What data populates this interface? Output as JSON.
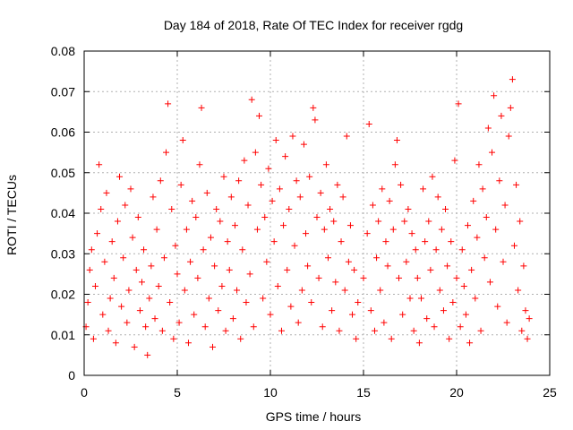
{
  "chart_data": {
    "type": "scatter",
    "title": "Day 184 of 2018, Rate Of TEC Index for receiver rgdg",
    "xlabel": "GPS time / hours",
    "ylabel": "ROTI / TECUs",
    "xlim": [
      0,
      25
    ],
    "ylim": [
      0,
      0.08
    ],
    "x_ticks": [
      0,
      5,
      10,
      15,
      20,
      25
    ],
    "y_ticks": [
      0,
      0.01,
      0.02,
      0.03,
      0.04,
      0.05,
      0.06,
      0.07,
      0.08
    ],
    "x_tick_labels": [
      "0",
      "5",
      "10",
      "15",
      "20",
      "25"
    ],
    "y_tick_labels": [
      "0",
      "0.01",
      "0.02",
      "0.03",
      "0.04",
      "0.05",
      "0.06",
      "0.07",
      "0.08"
    ],
    "grid": true,
    "marker": "+",
    "color": "#ff0000",
    "series": [
      {
        "points": [
          [
            0.1,
            0.012
          ],
          [
            0.2,
            0.018
          ],
          [
            0.3,
            0.026
          ],
          [
            0.4,
            0.031
          ],
          [
            0.5,
            0.009
          ],
          [
            0.6,
            0.022
          ],
          [
            0.7,
            0.035
          ],
          [
            0.8,
            0.052
          ],
          [
            0.9,
            0.041
          ],
          [
            1.0,
            0.015
          ],
          [
            1.1,
            0.028
          ],
          [
            1.2,
            0.045
          ],
          [
            1.3,
            0.011
          ],
          [
            1.4,
            0.019
          ],
          [
            1.5,
            0.033
          ],
          [
            1.6,
            0.024
          ],
          [
            1.7,
            0.008
          ],
          [
            1.8,
            0.038
          ],
          [
            1.9,
            0.049
          ],
          [
            2.0,
            0.017
          ],
          [
            2.1,
            0.029
          ],
          [
            2.2,
            0.042
          ],
          [
            2.3,
            0.013
          ],
          [
            2.4,
            0.021
          ],
          [
            2.5,
            0.046
          ],
          [
            2.6,
            0.034
          ],
          [
            2.7,
            0.007
          ],
          [
            2.8,
            0.026
          ],
          [
            2.9,
            0.039
          ],
          [
            3.0,
            0.016
          ],
          [
            3.1,
            0.023
          ],
          [
            3.2,
            0.031
          ],
          [
            3.3,
            0.012
          ],
          [
            3.4,
            0.005
          ],
          [
            3.5,
            0.019
          ],
          [
            3.6,
            0.027
          ],
          [
            3.7,
            0.044
          ],
          [
            3.8,
            0.014
          ],
          [
            3.9,
            0.036
          ],
          [
            4.0,
            0.022
          ],
          [
            4.1,
            0.048
          ],
          [
            4.2,
            0.011
          ],
          [
            4.3,
            0.029
          ],
          [
            4.4,
            0.055
          ],
          [
            4.5,
            0.067
          ],
          [
            4.6,
            0.018
          ],
          [
            4.7,
            0.041
          ],
          [
            4.8,
            0.009
          ],
          [
            4.9,
            0.032
          ],
          [
            5.0,
            0.025
          ],
          [
            5.1,
            0.013
          ],
          [
            5.2,
            0.047
          ],
          [
            5.3,
            0.058
          ],
          [
            5.4,
            0.021
          ],
          [
            5.5,
            0.036
          ],
          [
            5.6,
            0.008
          ],
          [
            5.7,
            0.028
          ],
          [
            5.8,
            0.043
          ],
          [
            5.9,
            0.015
          ],
          [
            6.0,
            0.039
          ],
          [
            6.1,
            0.024
          ],
          [
            6.2,
            0.052
          ],
          [
            6.3,
            0.066
          ],
          [
            6.4,
            0.031
          ],
          [
            6.5,
            0.012
          ],
          [
            6.6,
            0.045
          ],
          [
            6.7,
            0.019
          ],
          [
            6.8,
            0.034
          ],
          [
            6.9,
            0.007
          ],
          [
            7.0,
            0.027
          ],
          [
            7.1,
            0.041
          ],
          [
            7.2,
            0.016
          ],
          [
            7.3,
            0.038
          ],
          [
            7.4,
            0.022
          ],
          [
            7.5,
            0.049
          ],
          [
            7.6,
            0.011
          ],
          [
            7.7,
            0.033
          ],
          [
            7.8,
            0.026
          ],
          [
            7.9,
            0.044
          ],
          [
            8.0,
            0.014
          ],
          [
            8.1,
            0.037
          ],
          [
            8.2,
            0.021
          ],
          [
            8.3,
            0.048
          ],
          [
            8.4,
            0.009
          ],
          [
            8.5,
            0.031
          ],
          [
            8.6,
            0.053
          ],
          [
            8.7,
            0.018
          ],
          [
            8.8,
            0.042
          ],
          [
            8.9,
            0.025
          ],
          [
            9.0,
            0.068
          ],
          [
            9.1,
            0.012
          ],
          [
            9.2,
            0.055
          ],
          [
            9.3,
            0.036
          ],
          [
            9.4,
            0.064
          ],
          [
            9.5,
            0.047
          ],
          [
            9.6,
            0.019
          ],
          [
            9.7,
            0.039
          ],
          [
            9.8,
            0.028
          ],
          [
            9.9,
            0.051
          ],
          [
            10.0,
            0.015
          ],
          [
            10.1,
            0.043
          ],
          [
            10.2,
            0.033
          ],
          [
            10.3,
            0.058
          ],
          [
            10.4,
            0.022
          ],
          [
            10.5,
            0.046
          ],
          [
            10.6,
            0.011
          ],
          [
            10.7,
            0.037
          ],
          [
            10.8,
            0.054
          ],
          [
            10.9,
            0.026
          ],
          [
            11.0,
            0.041
          ],
          [
            11.1,
            0.017
          ],
          [
            11.2,
            0.059
          ],
          [
            11.3,
            0.032
          ],
          [
            11.4,
            0.048
          ],
          [
            11.5,
            0.013
          ],
          [
            11.6,
            0.044
          ],
          [
            11.7,
            0.021
          ],
          [
            11.8,
            0.057
          ],
          [
            11.9,
            0.035
          ],
          [
            12.0,
            0.027
          ],
          [
            12.1,
            0.049
          ],
          [
            12.2,
            0.018
          ],
          [
            12.3,
            0.066
          ],
          [
            12.4,
            0.063
          ],
          [
            12.5,
            0.039
          ],
          [
            12.6,
            0.024
          ],
          [
            12.7,
            0.045
          ],
          [
            12.8,
            0.012
          ],
          [
            12.9,
            0.036
          ],
          [
            13.0,
            0.052
          ],
          [
            13.1,
            0.029
          ],
          [
            13.2,
            0.041
          ],
          [
            13.3,
            0.016
          ],
          [
            13.4,
            0.038
          ],
          [
            13.5,
            0.023
          ],
          [
            13.6,
            0.047
          ],
          [
            13.7,
            0.011
          ],
          [
            13.8,
            0.033
          ],
          [
            13.9,
            0.044
          ],
          [
            14.0,
            0.021
          ],
          [
            14.1,
            0.059
          ],
          [
            14.2,
            0.028
          ],
          [
            14.3,
            0.037
          ],
          [
            14.4,
            0.015
          ],
          [
            14.5,
            0.026
          ],
          [
            14.6,
            0.009
          ],
          [
            14.7,
            0.018
          ],
          [
            15.0,
            0.024
          ],
          [
            15.2,
            0.035
          ],
          [
            15.3,
            0.062
          ],
          [
            15.4,
            0.016
          ],
          [
            15.5,
            0.042
          ],
          [
            15.6,
            0.011
          ],
          [
            15.7,
            0.029
          ],
          [
            15.8,
            0.038
          ],
          [
            15.9,
            0.021
          ],
          [
            16.0,
            0.046
          ],
          [
            16.1,
            0.013
          ],
          [
            16.2,
            0.033
          ],
          [
            16.3,
            0.027
          ],
          [
            16.4,
            0.043
          ],
          [
            16.5,
            0.009
          ],
          [
            16.6,
            0.036
          ],
          [
            16.7,
            0.052
          ],
          [
            16.8,
            0.058
          ],
          [
            16.9,
            0.024
          ],
          [
            17.0,
            0.047
          ],
          [
            17.1,
            0.015
          ],
          [
            17.2,
            0.038
          ],
          [
            17.3,
            0.028
          ],
          [
            17.4,
            0.041
          ],
          [
            17.5,
            0.019
          ],
          [
            17.6,
            0.035
          ],
          [
            17.7,
            0.011
          ],
          [
            17.8,
            0.031
          ],
          [
            17.9,
            0.024
          ],
          [
            18.0,
            0.008
          ],
          [
            18.1,
            0.019
          ],
          [
            18.2,
            0.046
          ],
          [
            18.3,
            0.033
          ],
          [
            18.4,
            0.014
          ],
          [
            18.5,
            0.038
          ],
          [
            18.6,
            0.026
          ],
          [
            18.7,
            0.049
          ],
          [
            18.8,
            0.012
          ],
          [
            18.9,
            0.031
          ],
          [
            19.0,
            0.044
          ],
          [
            19.1,
            0.021
          ],
          [
            19.2,
            0.036
          ],
          [
            19.3,
            0.016
          ],
          [
            19.4,
            0.041
          ],
          [
            19.5,
            0.027
          ],
          [
            19.6,
            0.009
          ],
          [
            19.7,
            0.033
          ],
          [
            19.8,
            0.018
          ],
          [
            19.9,
            0.053
          ],
          [
            20.0,
            0.024
          ],
          [
            20.1,
            0.067
          ],
          [
            20.2,
            0.012
          ],
          [
            20.3,
            0.031
          ],
          [
            20.4,
            0.022
          ],
          [
            20.5,
            0.015
          ],
          [
            20.6,
            0.037
          ],
          [
            20.7,
            0.008
          ],
          [
            20.8,
            0.026
          ],
          [
            20.9,
            0.043
          ],
          [
            21.0,
            0.019
          ],
          [
            21.1,
            0.034
          ],
          [
            21.2,
            0.052
          ],
          [
            21.3,
            0.011
          ],
          [
            21.4,
            0.046
          ],
          [
            21.5,
            0.029
          ],
          [
            21.6,
            0.039
          ],
          [
            21.7,
            0.061
          ],
          [
            21.8,
            0.023
          ],
          [
            21.9,
            0.055
          ],
          [
            22.0,
            0.069
          ],
          [
            22.1,
            0.036
          ],
          [
            22.2,
            0.017
          ],
          [
            22.3,
            0.048
          ],
          [
            22.4,
            0.064
          ],
          [
            22.5,
            0.028
          ],
          [
            22.6,
            0.042
          ],
          [
            22.7,
            0.013
          ],
          [
            22.8,
            0.059
          ],
          [
            22.9,
            0.066
          ],
          [
            23.0,
            0.073
          ],
          [
            23.1,
            0.032
          ],
          [
            23.2,
            0.047
          ],
          [
            23.3,
            0.021
          ],
          [
            23.4,
            0.038
          ],
          [
            23.5,
            0.011
          ],
          [
            23.6,
            0.027
          ],
          [
            23.7,
            0.016
          ],
          [
            23.8,
            0.009
          ],
          [
            23.9,
            0.014
          ]
        ]
      }
    ]
  }
}
